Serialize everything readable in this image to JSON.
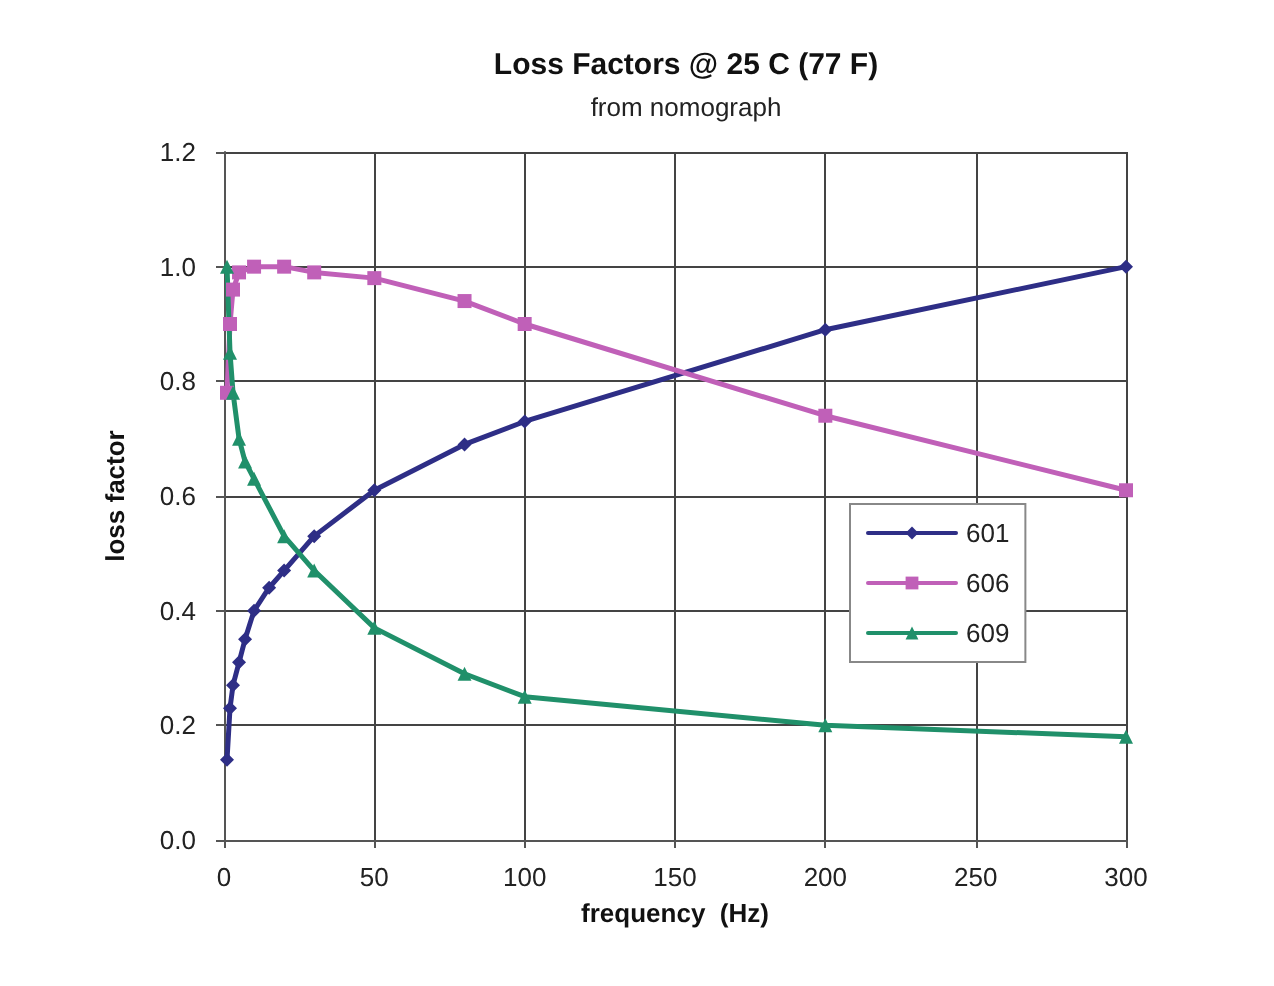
{
  "chart_data": {
    "type": "line",
    "title": "Loss Factors @ 25 C (77 F)",
    "subtitle": "from nomograph",
    "xlabel": "frequency  (Hz)",
    "ylabel": "loss factor",
    "xlim": [
      0,
      300
    ],
    "xticks": [
      0,
      50,
      100,
      150,
      200,
      250,
      300
    ],
    "ylim": [
      0,
      1.2
    ],
    "yticks": [
      {
        "value": 0,
        "label": "0.0"
      },
      {
        "value": 0.2,
        "label": "0.2"
      },
      {
        "value": 0.4,
        "label": "0.4"
      },
      {
        "value": 0.6,
        "label": "0.6"
      },
      {
        "value": 0.8,
        "label": "0.8"
      },
      {
        "value": 1,
        "label": "1.0"
      },
      {
        "value": 1.2,
        "label": "1.2"
      }
    ],
    "grid": true,
    "legend": "right",
    "series": [
      {
        "name": "601",
        "color": "#2e2e86",
        "marker": "diamond",
        "x": [
          1,
          2,
          3,
          5,
          7,
          10,
          15,
          20,
          30,
          50,
          80,
          100,
          200,
          300
        ],
        "values": [
          0.14,
          0.23,
          0.27,
          0.31,
          0.35,
          0.4,
          0.44,
          0.47,
          0.53,
          0.61,
          0.69,
          0.73,
          0.89,
          1.0
        ]
      },
      {
        "name": "606",
        "color": "#c060b8",
        "marker": "square",
        "x": [
          1,
          2,
          3,
          5,
          10,
          20,
          30,
          50,
          80,
          100,
          200,
          300
        ],
        "values": [
          0.78,
          0.9,
          0.96,
          0.99,
          1.0,
          1.0,
          0.99,
          0.98,
          0.94,
          0.9,
          0.74,
          0.61
        ]
      },
      {
        "name": "609",
        "color": "#20906a",
        "marker": "triangle",
        "x": [
          1,
          2,
          3,
          5,
          7,
          10,
          20,
          30,
          50,
          80,
          100,
          200,
          300
        ],
        "values": [
          1.0,
          0.85,
          0.78,
          0.7,
          0.66,
          0.63,
          0.53,
          0.47,
          0.37,
          0.29,
          0.25,
          0.2,
          0.18
        ]
      }
    ]
  }
}
